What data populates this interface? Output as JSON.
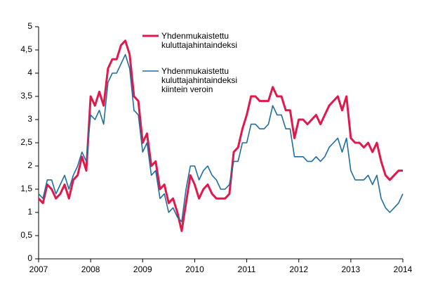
{
  "chart_data": {
    "type": "line",
    "x": [
      2007,
      2007.0833,
      2007.1667,
      2007.25,
      2007.3333,
      2007.4167,
      2007.5,
      2007.5833,
      2007.6667,
      2007.75,
      2007.8333,
      2007.9167,
      2008,
      2008.0833,
      2008.1667,
      2008.25,
      2008.3333,
      2008.4167,
      2008.5,
      2008.5833,
      2008.6667,
      2008.75,
      2008.8333,
      2008.9167,
      2009,
      2009.0833,
      2009.1667,
      2009.25,
      2009.3333,
      2009.4167,
      2009.5,
      2009.5833,
      2009.6667,
      2009.75,
      2009.8333,
      2009.9167,
      2010,
      2010.0833,
      2010.1667,
      2010.25,
      2010.3333,
      2010.4167,
      2010.5,
      2010.5833,
      2010.6667,
      2010.75,
      2010.8333,
      2010.9167,
      2011,
      2011.0833,
      2011.1667,
      2011.25,
      2011.3333,
      2011.4167,
      2011.5,
      2011.5833,
      2011.6667,
      2011.75,
      2011.8333,
      2011.9167,
      2012,
      2012.0833,
      2012.1667,
      2012.25,
      2012.3333,
      2012.4167,
      2012.5,
      2012.5833,
      2012.6667,
      2012.75,
      2012.8333,
      2012.9167,
      2013,
      2013.0833,
      2013.1667,
      2013.25,
      2013.3333,
      2013.4167,
      2013.5,
      2013.5833,
      2013.6667,
      2013.75,
      2013.8333,
      2013.9167,
      2014
    ],
    "series": [
      {
        "name": "Yhdenmukaistettu\nkuluttajahintaindeksi",
        "color": "#e0184c",
        "width": 3,
        "values": [
          1.3,
          1.2,
          1.6,
          1.5,
          1.3,
          1.4,
          1.6,
          1.3,
          1.7,
          1.8,
          2.2,
          1.9,
          3.5,
          3.3,
          3.6,
          3.3,
          4.1,
          4.3,
          4.3,
          4.6,
          4.7,
          4.4,
          3.5,
          3.4,
          2.5,
          2.7,
          2.0,
          2.1,
          1.5,
          1.6,
          1.2,
          1.3,
          1.0,
          0.6,
          1.2,
          1.8,
          1.6,
          1.3,
          1.5,
          1.6,
          1.4,
          1.3,
          1.3,
          1.3,
          1.4,
          2.3,
          2.4,
          2.8,
          3.1,
          3.5,
          3.5,
          3.4,
          3.4,
          3.4,
          3.7,
          3.5,
          3.5,
          3.2,
          3.2,
          2.6,
          3.0,
          3.0,
          2.9,
          3.0,
          3.1,
          2.9,
          3.1,
          3.3,
          3.4,
          3.5,
          3.2,
          3.5,
          2.6,
          2.5,
          2.5,
          2.4,
          2.5,
          2.3,
          2.5,
          2.1,
          1.8,
          1.7,
          1.8,
          1.9,
          1.9
        ]
      },
      {
        "name": "Yhdenmukaistettu\nkuluttajahintaindeksi\nkiintein veroin",
        "color": "#1f6e9c",
        "width": 1.6,
        "values": [
          1.4,
          1.3,
          1.7,
          1.7,
          1.4,
          1.6,
          1.8,
          1.5,
          1.8,
          2.0,
          2.3,
          2.1,
          3.1,
          3.0,
          3.2,
          2.9,
          3.8,
          4.0,
          4.0,
          4.2,
          4.4,
          4.1,
          3.2,
          3.1,
          2.3,
          2.5,
          1.8,
          1.9,
          1.3,
          1.4,
          1.0,
          1.1,
          0.9,
          0.8,
          1.5,
          2.0,
          2.0,
          1.7,
          1.9,
          2.0,
          1.8,
          1.7,
          1.5,
          1.5,
          1.6,
          2.1,
          2.1,
          2.5,
          2.5,
          2.9,
          2.9,
          2.8,
          2.8,
          2.9,
          3.3,
          3.1,
          3.1,
          2.8,
          2.8,
          2.2,
          2.2,
          2.2,
          2.1,
          2.1,
          2.2,
          2.1,
          2.2,
          2.4,
          2.5,
          2.6,
          2.3,
          2.6,
          1.9,
          1.7,
          1.7,
          1.7,
          1.8,
          1.6,
          1.8,
          1.3,
          1.1,
          1.0,
          1.1,
          1.2,
          1.4
        ]
      }
    ],
    "xlim": [
      2007,
      2014
    ],
    "xticks": [
      2007,
      2008,
      2009,
      2010,
      2011,
      2012,
      2013,
      2014
    ],
    "ylim": [
      0,
      5
    ],
    "yticks": [
      0,
      {
        "value": 0.5,
        "label": "0,5"
      },
      1,
      {
        "value": 1.5,
        "label": "1,5"
      },
      2,
      {
        "value": 2.5,
        "label": "2,5"
      },
      3,
      {
        "value": 3.5,
        "label": "3,5"
      },
      4,
      {
        "value": 4.5,
        "label": "4,5"
      },
      5
    ],
    "grid": false
  }
}
